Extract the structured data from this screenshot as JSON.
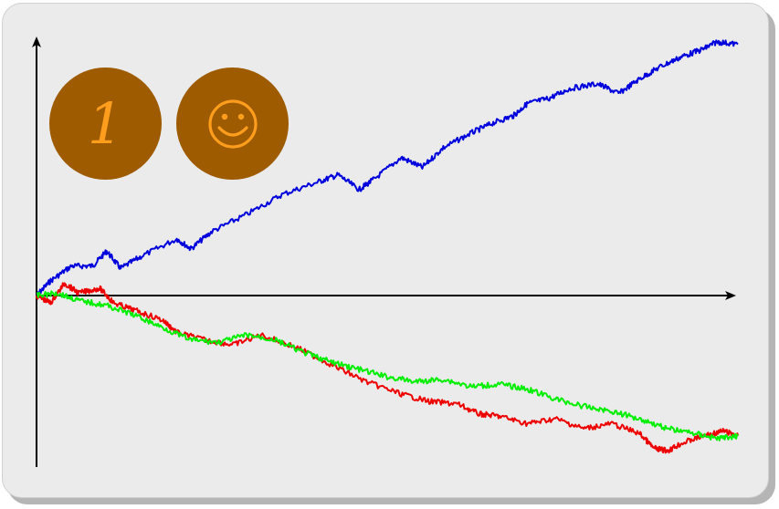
{
  "badges": {
    "number": "1",
    "smiley_icon": "smiley-face-icon"
  },
  "colors": {
    "background": "#ebebeb",
    "badge_fill": "#9e5b00",
    "badge_glyph": "#ff9d1c",
    "axis": "#000000"
  },
  "chart_data": {
    "type": "line",
    "title": "",
    "xlabel": "",
    "ylabel": "",
    "axis_labels_shown": false,
    "grid": false,
    "xlim": [
      0,
      1
    ],
    "ylim": [
      -0.65,
      1.0
    ],
    "series": [
      {
        "color": "#0000dd",
        "x": [
          0,
          0.02,
          0.05,
          0.08,
          0.1,
          0.12,
          0.15,
          0.2,
          0.22,
          0.25,
          0.3,
          0.35,
          0.4,
          0.43,
          0.46,
          0.48,
          0.52,
          0.55,
          0.58,
          0.62,
          0.65,
          0.68,
          0.7,
          0.73,
          0.76,
          0.8,
          0.83,
          0.86,
          0.89,
          0.92,
          0.95,
          0.97,
          1.0
        ],
        "y": [
          0,
          0.06,
          0.12,
          0.12,
          0.18,
          0.11,
          0.16,
          0.23,
          0.19,
          0.26,
          0.33,
          0.41,
          0.46,
          0.49,
          0.43,
          0.47,
          0.56,
          0.52,
          0.6,
          0.66,
          0.7,
          0.73,
          0.78,
          0.8,
          0.84,
          0.86,
          0.82,
          0.88,
          0.93,
          0.97,
          1.0,
          1.03,
          1.02
        ]
      },
      {
        "color": "#ee0000",
        "x": [
          0,
          0.02,
          0.04,
          0.06,
          0.09,
          0.11,
          0.14,
          0.18,
          0.2,
          0.24,
          0.28,
          0.32,
          0.37,
          0.42,
          0.47,
          0.52,
          0.56,
          0.6,
          0.63,
          0.66,
          0.7,
          0.74,
          0.78,
          0.82,
          0.86,
          0.88,
          0.9,
          0.92,
          0.95,
          0.98,
          1.0
        ],
        "y": [
          0,
          -0.03,
          0.05,
          0.01,
          0.03,
          -0.03,
          -0.06,
          -0.1,
          -0.15,
          -0.18,
          -0.2,
          -0.16,
          -0.21,
          -0.28,
          -0.35,
          -0.4,
          -0.43,
          -0.44,
          -0.48,
          -0.49,
          -0.52,
          -0.5,
          -0.54,
          -0.52,
          -0.56,
          -0.62,
          -0.63,
          -0.6,
          -0.57,
          -0.55,
          -0.57
        ]
      },
      {
        "color": "#00ee00",
        "x": [
          0,
          0.03,
          0.06,
          0.1,
          0.14,
          0.18,
          0.22,
          0.26,
          0.3,
          0.34,
          0.38,
          0.42,
          0.46,
          0.5,
          0.54,
          0.58,
          0.62,
          0.66,
          0.7,
          0.74,
          0.78,
          0.82,
          0.86,
          0.9,
          0.94,
          0.97,
          1.0
        ],
        "y": [
          0,
          0.01,
          -0.02,
          -0.04,
          -0.08,
          -0.13,
          -0.18,
          -0.19,
          -0.16,
          -0.18,
          -0.23,
          -0.27,
          -0.3,
          -0.33,
          -0.35,
          -0.34,
          -0.37,
          -0.36,
          -0.38,
          -0.42,
          -0.45,
          -0.47,
          -0.5,
          -0.54,
          -0.56,
          -0.58,
          -0.57
        ]
      }
    ]
  }
}
